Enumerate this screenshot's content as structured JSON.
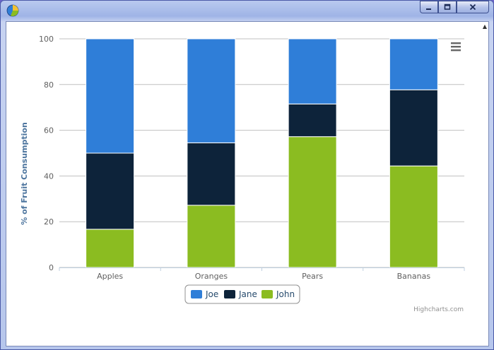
{
  "window": {
    "title": ""
  },
  "chart_data": {
    "type": "bar",
    "stacking": "percent",
    "title": "",
    "xlabel": "",
    "ylabel": "% of Fruit Consumption",
    "categories": [
      "Apples",
      "Oranges",
      "Pears",
      "Bananas"
    ],
    "ylim": [
      0,
      100
    ],
    "yticks": [
      0,
      20,
      40,
      60,
      80,
      100
    ],
    "grid": true,
    "legend_position": "bottom-center",
    "series": [
      {
        "name": "Joe",
        "color": "#2f7ed8",
        "values": [
          50,
          45.5,
          28.5,
          22.3
        ]
      },
      {
        "name": "Jane",
        "color": "#0d233a",
        "values": [
          33.3,
          27.3,
          14.3,
          33.3
        ]
      },
      {
        "name": "John",
        "color": "#8bbc21",
        "values": [
          16.7,
          27.2,
          57.2,
          44.4
        ]
      }
    ],
    "credits": "Highcharts.com",
    "menu_icon": "hamburger-menu-icon"
  }
}
